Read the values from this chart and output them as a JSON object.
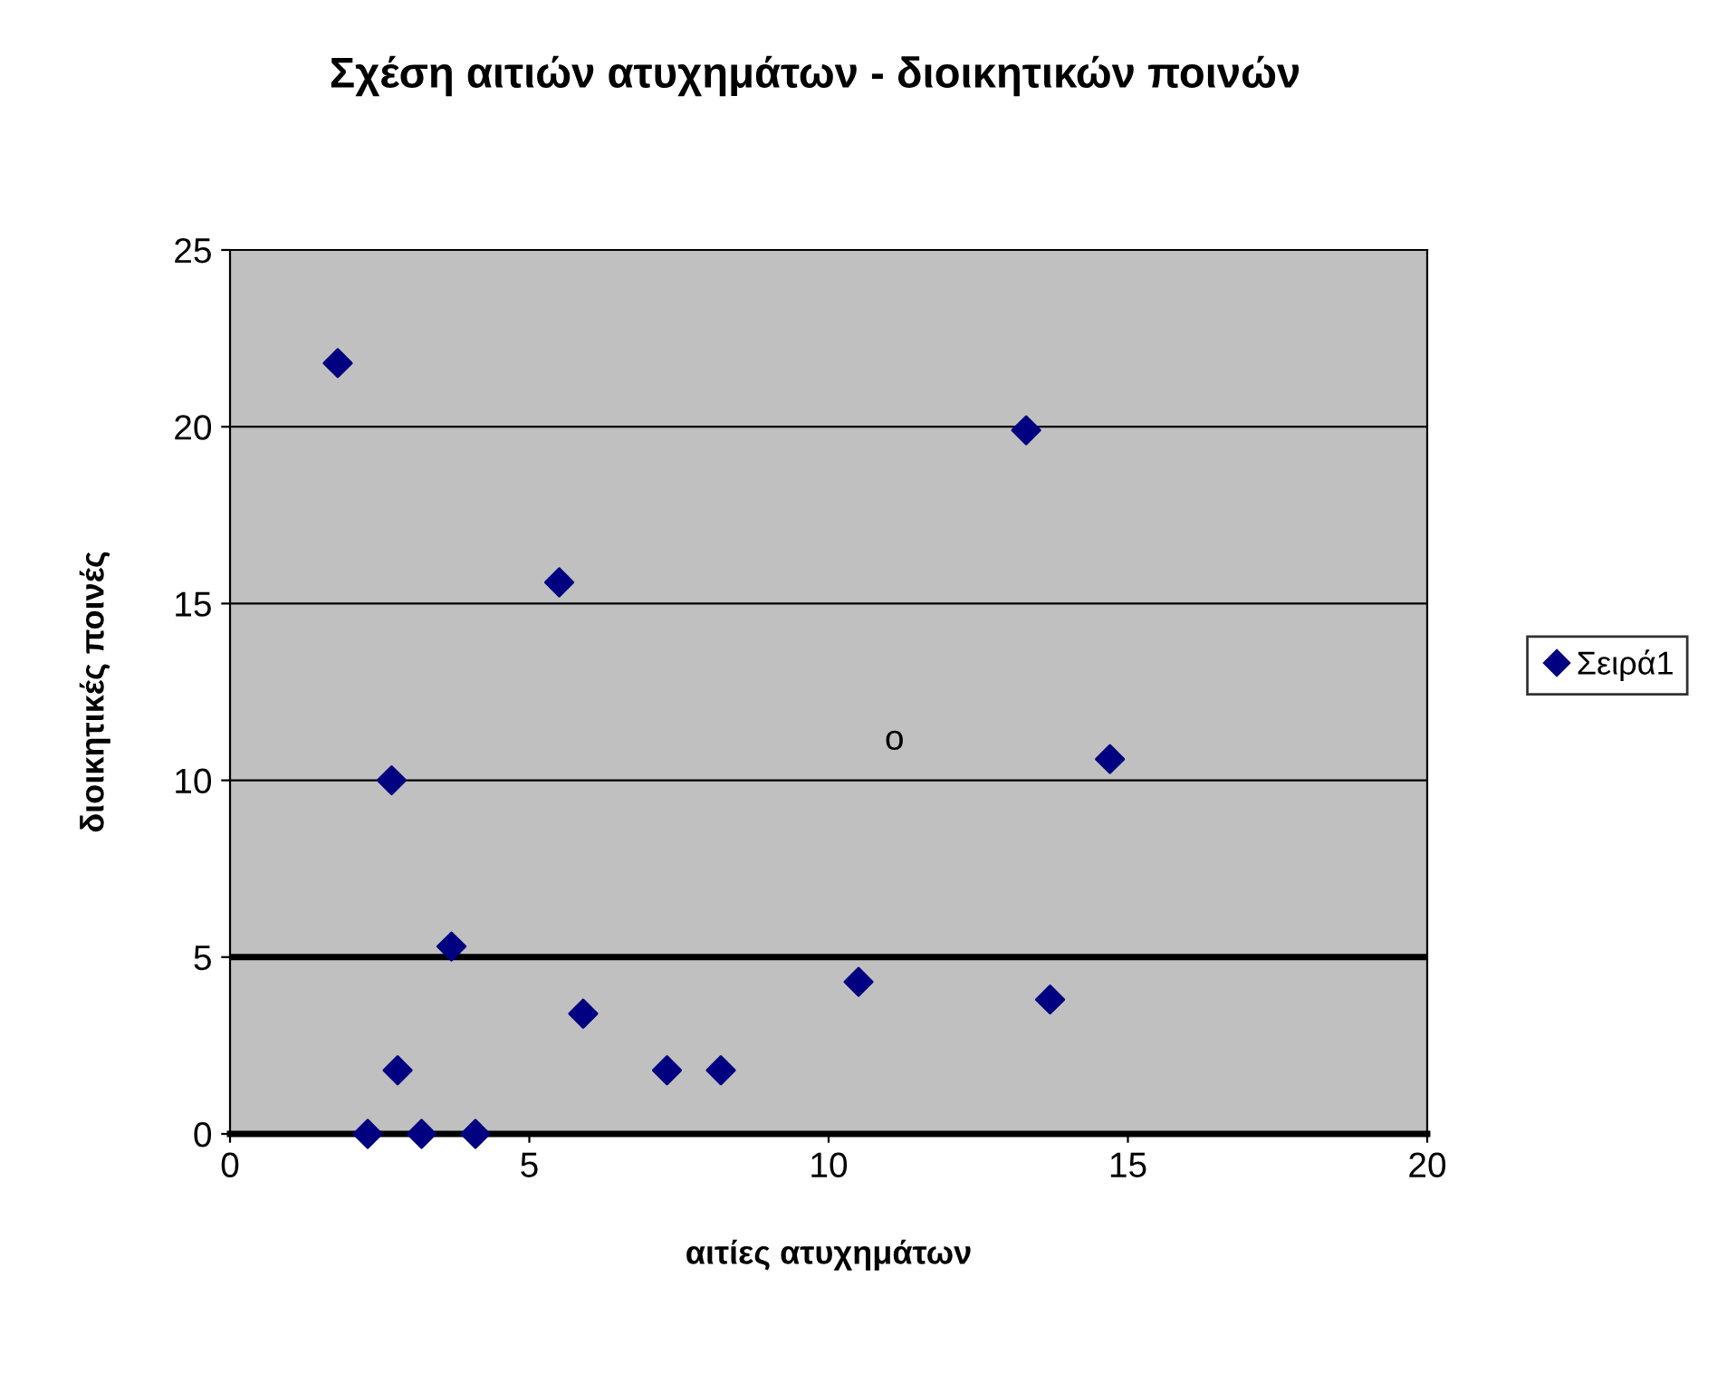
{
  "chart_data": {
    "type": "scatter",
    "title": "Σχέση αιτιών ατυχημάτων - διοικητικών ποινών",
    "xlabel": "αιτίες ατυχημάτων",
    "ylabel": "διοικητικές ποινές",
    "x": [
      1.8,
      2.3,
      2.7,
      2.8,
      3.2,
      3.7,
      4.1,
      5.5,
      5.9,
      7.3,
      8.2,
      10.5,
      13.3,
      13.7,
      14.7
    ],
    "series": [
      {
        "name": "Σειρά1",
        "color": "#000080",
        "values": [
          21.8,
          0,
          10.0,
          1.8,
          0,
          5.3,
          0,
          15.6,
          3.4,
          1.8,
          1.8,
          4.3,
          19.9,
          3.8,
          10.6
        ]
      }
    ],
    "xlim": [
      0,
      20
    ],
    "xticks": [
      0,
      5,
      10,
      15,
      20
    ],
    "ylim": [
      0,
      25
    ],
    "yticks": [
      0,
      5,
      10,
      15,
      20,
      25
    ],
    "ref_lines": [
      {
        "axis": "y",
        "value": 5,
        "color": "#000000"
      }
    ],
    "annotations": [
      "o"
    ],
    "grid": "y",
    "legend": "right",
    "marker": "diamond"
  }
}
